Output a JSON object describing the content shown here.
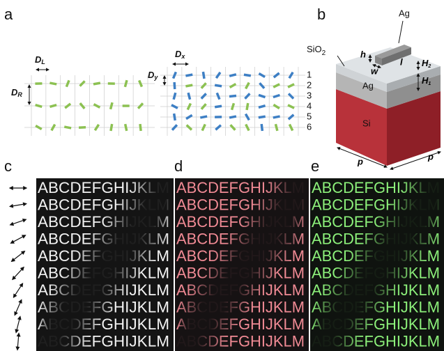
{
  "panel_labels": [
    "a",
    "b",
    "c",
    "d",
    "e"
  ],
  "panel_a": {
    "left": {
      "dl": {
        "main": "D",
        "sub": "L"
      },
      "dr": {
        "main": "D",
        "sub": "R"
      }
    },
    "right": {
      "dx": {
        "main": "D",
        "sub": "x"
      },
      "dy": {
        "main": "D",
        "sub": "y"
      },
      "row_numbers": [
        "1",
        "2",
        "3",
        "4",
        "5",
        "6"
      ]
    }
  },
  "panel_b": {
    "top_label": "Ag",
    "oxide": {
      "main": "SiO",
      "sub": "2"
    },
    "h": "h",
    "w": "w",
    "l": "l",
    "h2": {
      "main": "H",
      "sub": "2"
    },
    "h1": {
      "main": "H",
      "sub": "1"
    },
    "metal": "Ag",
    "substrate": "Si",
    "p_front": "p",
    "p_side": "p"
  },
  "panel_c": {
    "rows": [
      "ABCDEFGHIJKLM",
      "ABCDEFGHIJKLM",
      "ABCDEFGHIJKLM",
      "ABCDEFGHIJKLM",
      "ABCDEFGHIJKLM",
      "ABCDEFGHIJKLM",
      "ABCDEFGHIJKLM",
      "ABCDEFGHIJKLM",
      "ABCDEFGHIJKLM",
      "ABCDEFGHIJKLM"
    ]
  },
  "panel_d": {
    "rows": [
      "ABCDEFGHIJKLM",
      "ABCDEFGHIJKLM",
      "ABCDEFGHIJKLM",
      "ABCDEFGHIJKLM",
      "ABCDEFGHIJKLM",
      "ABCDEFGHIJKLM",
      "ABCDEFGHIJKLM",
      "ABCDEFGHIJKLM",
      "ABCDEFGHIJKLM",
      "ABCDEFGHIJKLM"
    ]
  },
  "panel_e": {
    "rows": [
      "ABCDEFGHIJKLM",
      "ABCDEFGHIJKLM",
      "ABCDEFGHIJKLM",
      "ABCDEFGHIJKLM",
      "ABCDEFGHIJKLM",
      "ABCDEFGHIJKLM",
      "ABCDEFGHIJKLM",
      "ABCDEFGHIJKLM",
      "ABCDEFGHIJKLM",
      "ABCDEFGHIJKLM"
    ]
  }
}
